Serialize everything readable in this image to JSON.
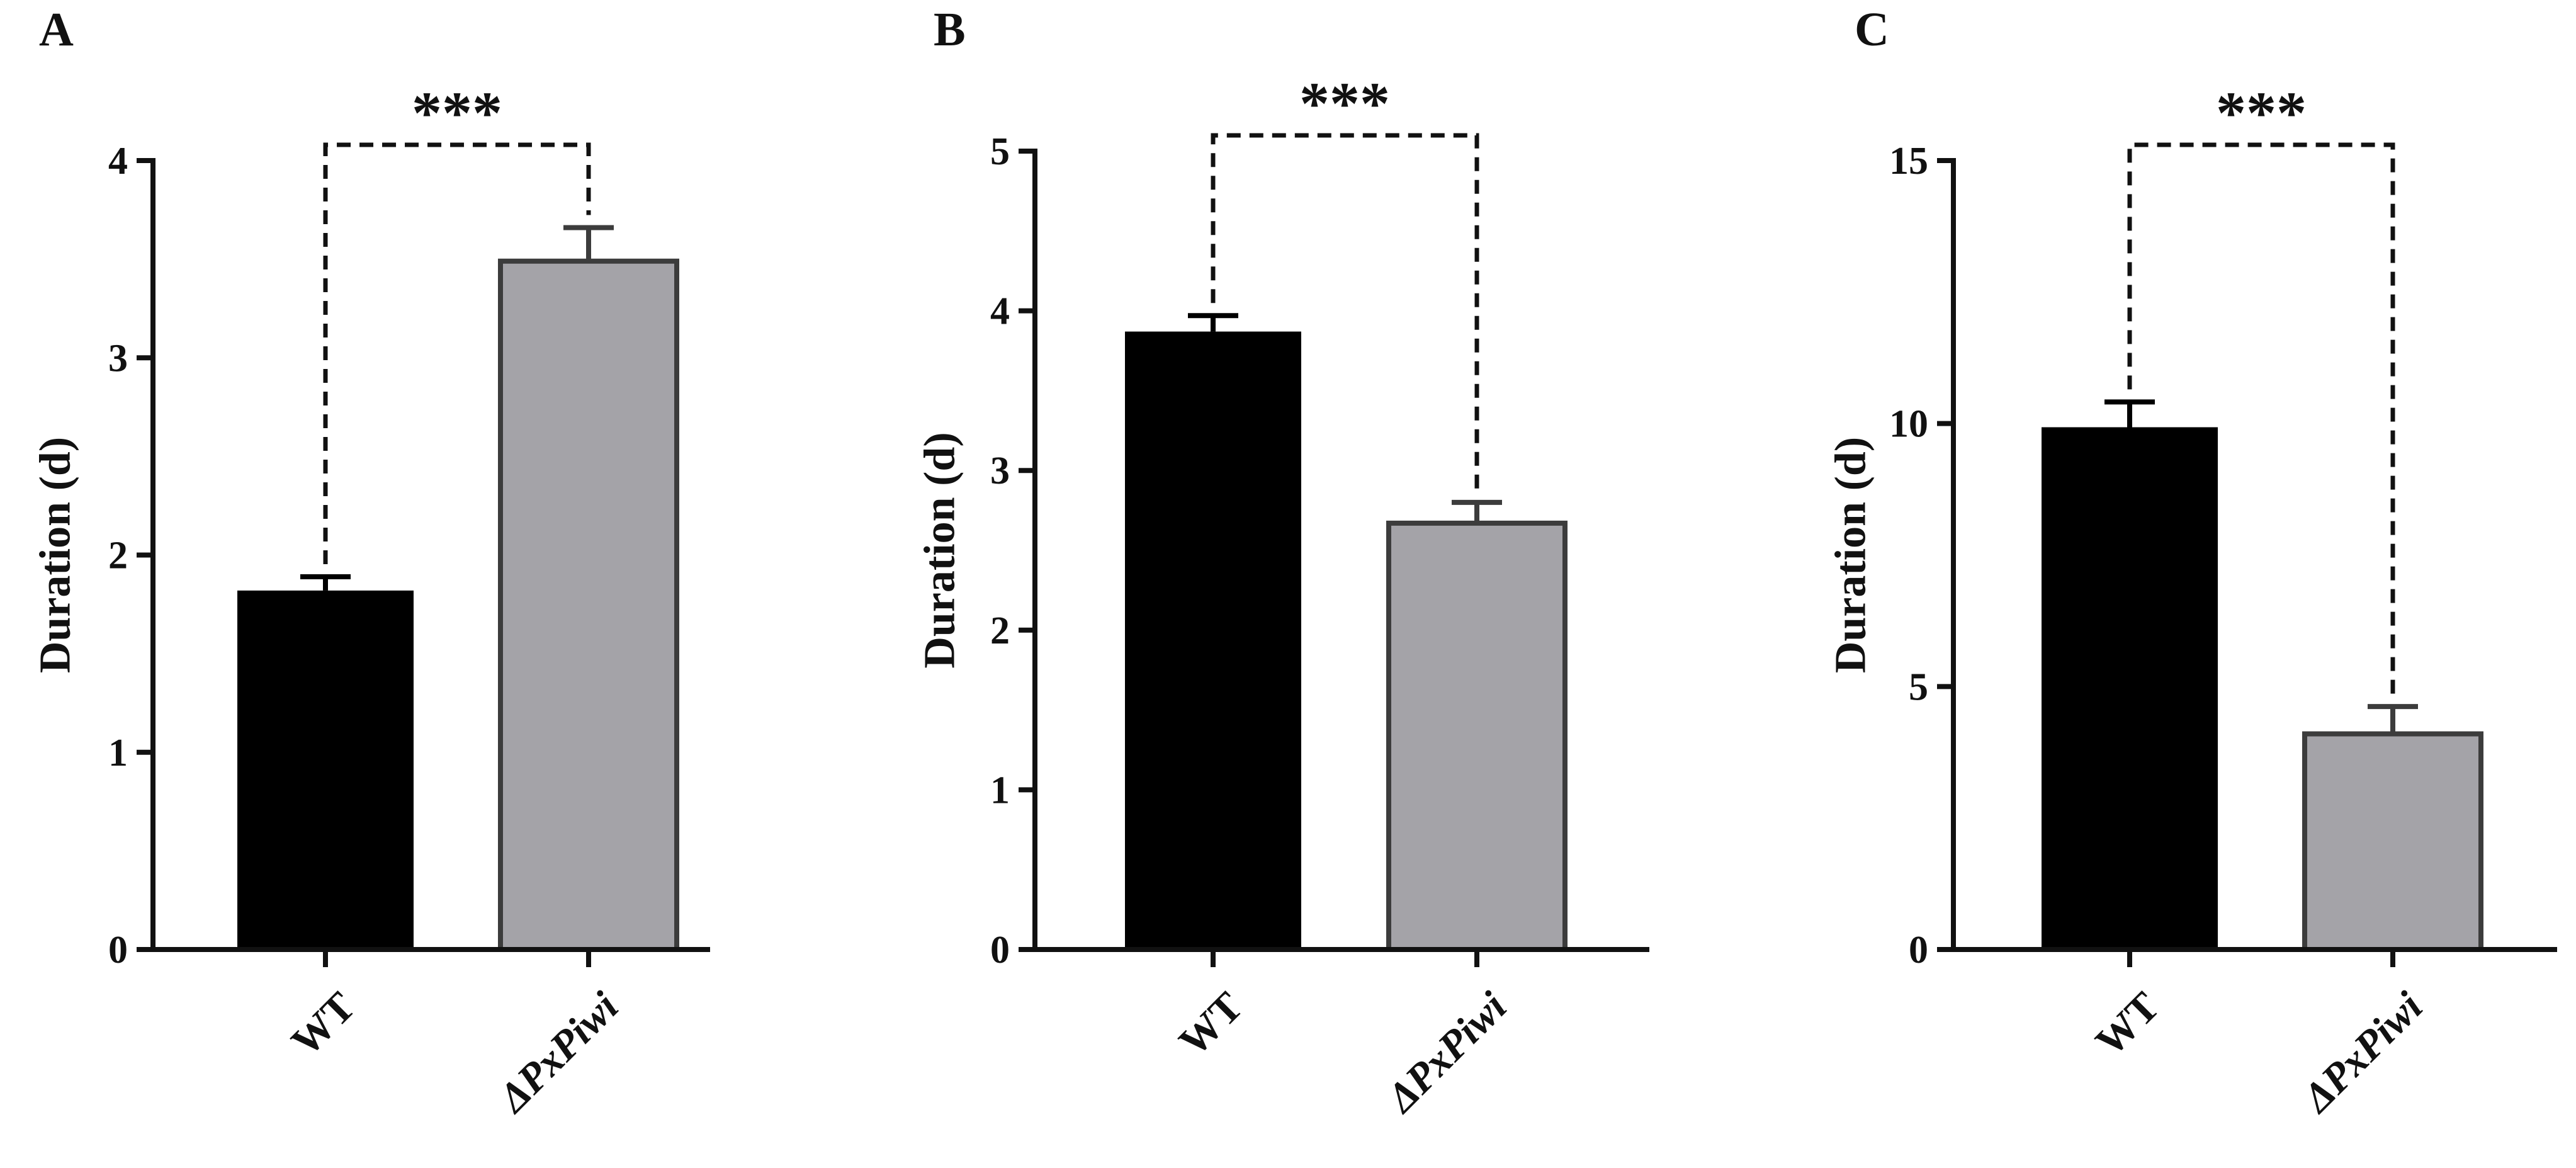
{
  "colors": {
    "wt_bar": "#000000",
    "mutant_bar": "#a4a3a8",
    "mutant_border": "#3c3c3c",
    "axis": "#111111"
  },
  "chart_data": [
    {
      "type": "bar",
      "panel": "A",
      "categories": [
        "WT",
        "ΔPxPiwi"
      ],
      "values": [
        1.82,
        3.49
      ],
      "errors": [
        0.07,
        0.17
      ],
      "ylabel": "Duration (d)",
      "ylim": [
        0,
        4
      ],
      "yticks": [
        0,
        1,
        2,
        3,
        4
      ],
      "significance": "***"
    },
    {
      "type": "bar",
      "panel": "B",
      "categories": [
        "WT",
        "ΔPxPiwi"
      ],
      "values": [
        3.87,
        2.67
      ],
      "errors": [
        0.1,
        0.13
      ],
      "ylabel": "Duration (d)",
      "ylim": [
        0,
        5
      ],
      "yticks": [
        0,
        1,
        2,
        3,
        4,
        5
      ],
      "significance": "***"
    },
    {
      "type": "bar",
      "panel": "C",
      "categories": [
        "WT",
        "ΔPxPiwi"
      ],
      "values": [
        9.93,
        4.1
      ],
      "errors": [
        0.48,
        0.52
      ],
      "ylabel": "Duration (d)",
      "ylim": [
        0,
        15
      ],
      "yticks": [
        0,
        5,
        10,
        15
      ],
      "significance": "***"
    }
  ]
}
